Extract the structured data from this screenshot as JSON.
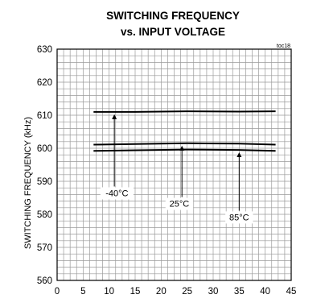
{
  "chart_data": {
    "type": "line",
    "title": "SWITCHING FREQUENCY",
    "subtitle": "vs. INPUT VOLTAGE",
    "tag": "toc18",
    "xlabel": "",
    "ylabel": "SWITCHING FREQUENCY (kHz)",
    "xlim": [
      0,
      45
    ],
    "ylim": [
      560,
      630
    ],
    "x_ticks": [
      "0",
      "5",
      "10",
      "15",
      "20",
      "25",
      "30",
      "35",
      "40",
      "45"
    ],
    "y_ticks": [
      "560",
      "570",
      "580",
      "590",
      "600",
      "610",
      "620",
      "630"
    ],
    "grid": true,
    "series": [
      {
        "name": "-40°C",
        "x": [
          7,
          15,
          25,
          35,
          42
        ],
        "y": [
          611,
          611,
          611.2,
          611.1,
          611.2
        ]
      },
      {
        "name": "25°C",
        "x": [
          7,
          15,
          25,
          35,
          42
        ],
        "y": [
          601.1,
          601.3,
          601.5,
          601.4,
          601.1
        ]
      },
      {
        "name": "85°C",
        "x": [
          7,
          15,
          25,
          35,
          42
        ],
        "y": [
          599.2,
          599.4,
          599.6,
          599.5,
          599.2
        ]
      }
    ],
    "annotations": [
      {
        "text": "-40°C",
        "series": 0,
        "arrow_x": 11,
        "text_x": 11.5,
        "text_y": 585.5
      },
      {
        "text": "25°C",
        "series": 1,
        "arrow_x": 24,
        "text_x": 23.5,
        "text_y": 582.3
      },
      {
        "text": "85°C",
        "series": 2,
        "arrow_x": 35,
        "text_x": 35,
        "text_y": 578.2
      }
    ]
  }
}
